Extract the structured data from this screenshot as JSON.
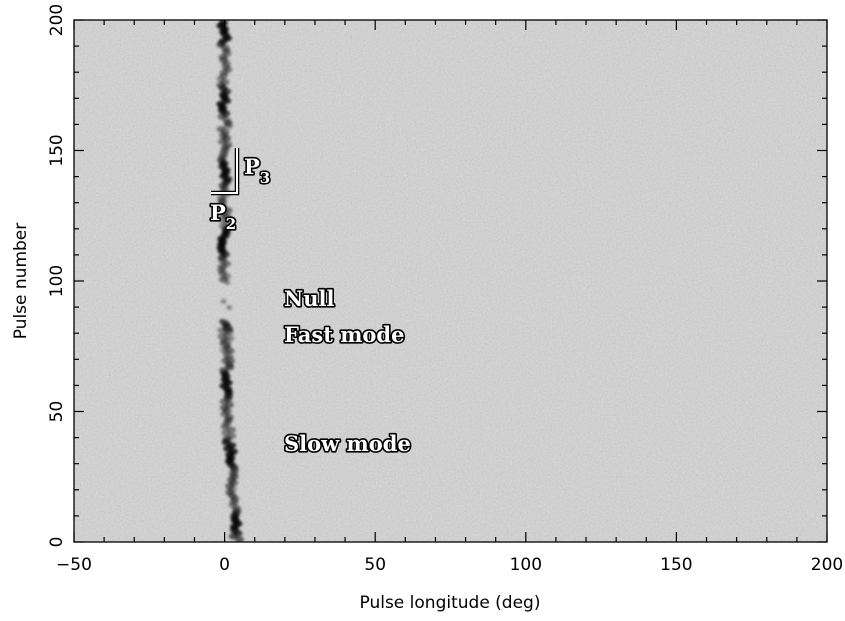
{
  "chart_data": {
    "type": "heatmap",
    "title": "",
    "xlabel": "Pulse longitude (deg)",
    "ylabel": "Pulse number",
    "xlim": [
      -50,
      200
    ],
    "ylim": [
      0,
      200
    ],
    "xticks": [
      -50,
      0,
      50,
      100,
      150,
      200
    ],
    "yticks": [
      0,
      50,
      100,
      150,
      200
    ],
    "colormap": "grayscale (dark = strong emission)",
    "background_color": "#bcbcbc",
    "emission_color": "#1e1e1e",
    "drift_band": {
      "description": "drifting subpulse emission near 0 deg",
      "longitude_center_deg": [
        {
          "pulse": 0,
          "deg": 4
        },
        {
          "pulse": 50,
          "deg": 1
        },
        {
          "pulse": 100,
          "deg": 0
        },
        {
          "pulse": 150,
          "deg": 0
        },
        {
          "pulse": 200,
          "deg": 0
        }
      ],
      "null_pulse_range": [
        85,
        100
      ]
    },
    "annotations": [
      {
        "text": "Null",
        "x": 21,
        "y": 92
      },
      {
        "text": "Fast mode",
        "x": 21,
        "y": 79
      },
      {
        "text": "Slow mode",
        "x": 21,
        "y": 37
      }
    ],
    "markers": {
      "p3_label": "P",
      "p3_subscript": "3",
      "p2_label": "P",
      "p2_subscript": "2"
    }
  }
}
